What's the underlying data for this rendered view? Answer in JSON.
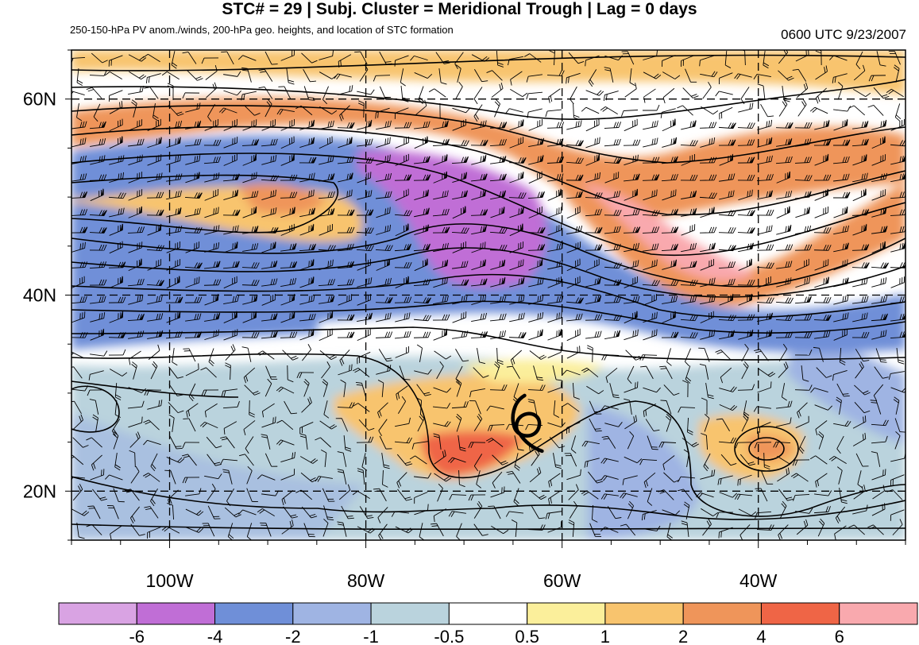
{
  "title": "STC# = 29 | Subj. Cluster = Meridional Trough | Lag = 0 days",
  "subtitle": "250-150-hPa PV anom./winds, 200-hPa geo. heights, and location of STC formation",
  "timestamp": "0600 UTC  9/23/2007",
  "map": {
    "lon_range": [
      -110,
      -25
    ],
    "lat_range": [
      15,
      65
    ],
    "lat_ticks": [
      {
        "value": 60,
        "label": "60N"
      },
      {
        "value": 40,
        "label": "40N"
      },
      {
        "value": 20,
        "label": "20N"
      }
    ],
    "lon_ticks": [
      {
        "value": -100,
        "label": "100W"
      },
      {
        "value": -80,
        "label": "80W"
      },
      {
        "value": -60,
        "label": "60W"
      },
      {
        "value": -40,
        "label": "40W"
      }
    ],
    "gridlines": "dashed",
    "stc_marker": {
      "symbol": "tropical-cyclone",
      "lon": -63.5,
      "lat": 27
    }
  },
  "colorbar": {
    "colors": [
      "#d9a3e3",
      "#c06ed6",
      "#6f8fd8",
      "#9fb4e3",
      "#bad3dd",
      "#ffffff",
      "#fbef9b",
      "#f8c46e",
      "#ef955a",
      "#ef6546",
      "#f9a9ae"
    ],
    "labels": [
      "-6",
      "-4",
      "-2",
      "-1",
      "-0.5",
      "0.5",
      "1",
      "2",
      "4",
      "6"
    ]
  },
  "colors": {
    "height_contour": "#000000",
    "wind_barb": "#000000",
    "grid": "#000000"
  }
}
